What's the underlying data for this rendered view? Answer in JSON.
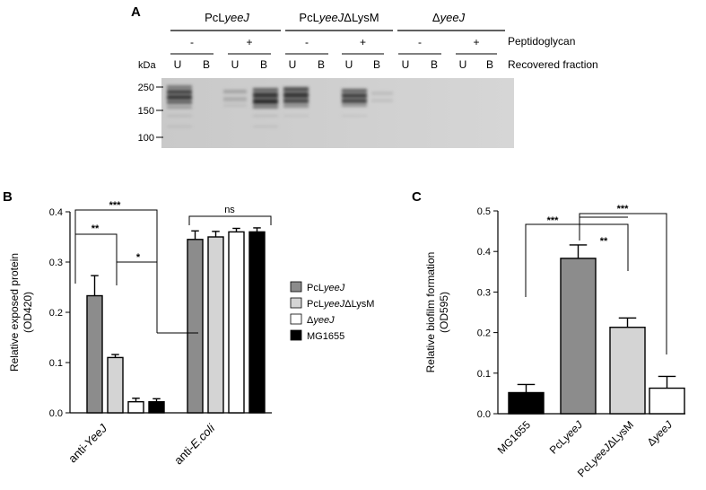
{
  "panel_a": {
    "letter": "A",
    "groups": [
      {
        "prefix": "PcL",
        "italic": "yeeJ",
        "suffix": ""
      },
      {
        "prefix": "PcL",
        "italic": "yeeJ",
        "suffix": "ΔLysM"
      },
      {
        "prefix": "Δ",
        "italic": "yeeJ",
        "suffix": ""
      }
    ],
    "pg_signs": [
      "-",
      "+",
      "-",
      "+",
      "-",
      "+"
    ],
    "pg_label": "Peptidoglycan",
    "lanes": [
      "U",
      "B",
      "U",
      "B",
      "U",
      "B",
      "U",
      "B",
      "U",
      "B",
      "U",
      "B"
    ],
    "fraction_label": "Recovered fraction",
    "kda_label": "kDa",
    "markers": [
      "250",
      "150",
      "100"
    ]
  },
  "panel_b": {
    "letter": "B",
    "ylabel_line1": "Relative exposed protein",
    "ylabel_line2": "(OD420)",
    "ticks": [
      "0.0",
      "0.1",
      "0.2",
      "0.3",
      "0.4"
    ],
    "sig": {
      "s1": "***",
      "s2": "**",
      "s3": "*",
      "s4": "ns"
    },
    "legend": [
      {
        "prefix": "PcL",
        "italic": "yeeJ",
        "suffix": ""
      },
      {
        "prefix": "PcL",
        "italic": "yeeJ",
        "suffix": "ΔLysM"
      },
      {
        "prefix": "Δ",
        "italic": "yeeJ",
        "suffix": ""
      },
      {
        "prefix": "",
        "italic": "",
        "suffix": "MG1655"
      }
    ]
  },
  "panel_c": {
    "letter": "C",
    "ylabel_line1": "Relative biofilm formation",
    "ylabel_line2": "(OD595)",
    "ticks": [
      "0.0",
      "0.1",
      "0.2",
      "0.3",
      "0.4",
      "0.5"
    ],
    "sig": {
      "s1": "***",
      "s2": "**",
      "s3": "***"
    }
  },
  "colors": {
    "dark_gray": "#8c8c8c",
    "light_gray": "#d4d4d4",
    "white": "#ffffff",
    "black": "#000000"
  },
  "chart_data": [
    {
      "type": "bar",
      "categories": [
        "anti-YeeJ",
        "anti-E.coli"
      ],
      "cat_labels": [
        {
          "prefix": "anti-",
          "italic": "YeeJ",
          "suffix": ""
        },
        {
          "prefix": "anti-",
          "italic": "E.coli",
          "suffix": ""
        }
      ],
      "series": [
        {
          "name": "PcLyeeJ",
          "values": [
            0.233,
            0.345
          ],
          "errors": [
            0.04,
            0.017
          ],
          "color": "#8c8c8c"
        },
        {
          "name": "PcLyeeJΔLysM",
          "values": [
            0.11,
            0.35
          ],
          "errors": [
            0.006,
            0.011
          ],
          "color": "#d4d4d4"
        },
        {
          "name": "ΔyeeJ",
          "values": [
            0.022,
            0.36
          ],
          "errors": [
            0.007,
            0.007
          ],
          "color": "#ffffff"
        },
        {
          "name": "MG1655",
          "values": [
            0.022,
            0.36
          ],
          "errors": [
            0.006,
            0.008
          ],
          "color": "#000000"
        }
      ],
      "ylim": [
        0,
        0.4
      ],
      "legend_position": "right"
    },
    {
      "type": "bar",
      "categories": [
        "MG1655",
        "PcLyeeJ",
        "PcLyeeJΔLysM",
        "ΔyeeJ"
      ],
      "cat_labels": [
        {
          "prefix": "",
          "italic": "",
          "suffix": "MG1655"
        },
        {
          "prefix": "PcL",
          "italic": "yeeJ",
          "suffix": ""
        },
        {
          "prefix": "PcL",
          "italic": "yeeJ",
          "suffix": "ΔLysM"
        },
        {
          "prefix": "Δ",
          "italic": "yeeJ",
          "suffix": ""
        }
      ],
      "values": [
        0.052,
        0.383,
        0.213,
        0.063
      ],
      "errors": [
        0.02,
        0.033,
        0.023,
        0.029
      ],
      "colors": [
        "#000000",
        "#8c8c8c",
        "#d4d4d4",
        "#ffffff"
      ],
      "ylim": [
        0,
        0.5
      ]
    }
  ]
}
